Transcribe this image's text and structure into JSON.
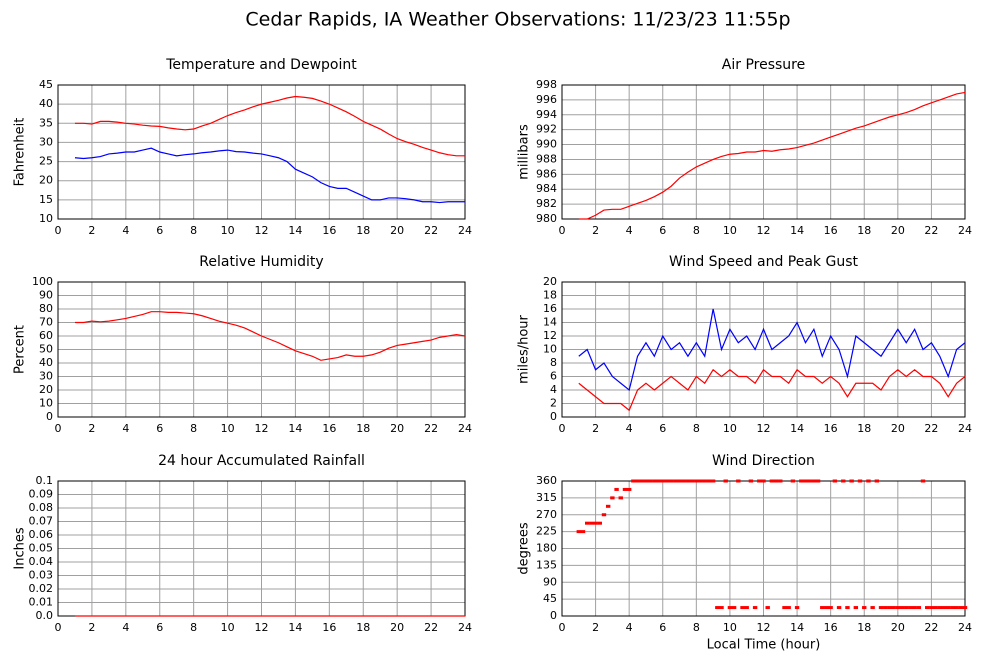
{
  "title": "Cedar Rapids, IA Weather Observations: 11/23/23 11:55p",
  "chart_data": [
    {
      "type": "line",
      "title": "Temperature and Dewpoint",
      "y_label": "Fahrenheit",
      "x": [
        1,
        1.5,
        2,
        2.5,
        3,
        3.5,
        4,
        4.5,
        5,
        5.5,
        6,
        6.5,
        7,
        7.5,
        8,
        8.5,
        9,
        9.5,
        10,
        10.5,
        11,
        11.5,
        12,
        12.5,
        13,
        13.5,
        14,
        14.5,
        15,
        15.5,
        16,
        16.5,
        17,
        17.5,
        18,
        18.5,
        19,
        19.5,
        20,
        20.5,
        21,
        21.5,
        22,
        22.5,
        23,
        23.5,
        24
      ],
      "series": [
        {
          "color": "#ff0000",
          "values": [
            35,
            35,
            34.8,
            35.5,
            35.5,
            35.3,
            35,
            34.8,
            34.5,
            34.3,
            34.2,
            33.8,
            33.5,
            33.3,
            33.5,
            34.3,
            35,
            36,
            37,
            37.8,
            38.5,
            39.3,
            40,
            40.5,
            41,
            41.6,
            42,
            41.8,
            41.5,
            40.8,
            40,
            39,
            38,
            36.8,
            35.5,
            34.5,
            33.5,
            32.2,
            31,
            30.2,
            29.5,
            28.7,
            28,
            27.3,
            26.8,
            26.5,
            26.5
          ]
        },
        {
          "color": "#0000ff",
          "values": [
            26,
            25.8,
            26,
            26.3,
            27,
            27.2,
            27.5,
            27.5,
            28,
            28.5,
            27.5,
            27,
            26.5,
            26.8,
            27,
            27.3,
            27.5,
            27.8,
            28,
            27.6,
            27.5,
            27.2,
            27,
            26.5,
            26,
            25,
            23,
            22,
            21,
            19.5,
            18.5,
            18,
            18,
            17,
            16,
            15,
            15,
            15.5,
            15.5,
            15.3,
            15,
            14.5,
            14.5,
            14.3,
            14.5,
            14.5,
            14.5
          ]
        }
      ],
      "xlim": [
        0,
        24
      ],
      "xticks": [
        0,
        2,
        4,
        6,
        8,
        10,
        12,
        14,
        16,
        18,
        20,
        22,
        24
      ],
      "ylim": [
        10,
        45
      ],
      "yticks": [
        10,
        15,
        20,
        25,
        30,
        35,
        40,
        45
      ],
      "grid": true
    },
    {
      "type": "line",
      "title": "Air Pressure",
      "y_label": "millibars",
      "x": [
        1,
        1.5,
        2,
        2.5,
        3,
        3.5,
        4,
        4.5,
        5,
        5.5,
        6,
        6.5,
        7,
        7.5,
        8,
        8.5,
        9,
        9.5,
        10,
        10.5,
        11,
        11.5,
        12,
        12.5,
        13,
        13.5,
        14,
        14.5,
        15,
        15.5,
        16,
        16.5,
        17,
        17.5,
        18,
        18.5,
        19,
        19.5,
        20,
        20.5,
        21,
        21.5,
        22,
        22.5,
        23,
        23.5,
        24
      ],
      "series": [
        {
          "color": "#ff0000",
          "values": [
            980,
            980,
            980.5,
            981.2,
            981.3,
            981.3,
            981.7,
            982.1,
            982.5,
            983,
            983.6,
            984.4,
            985.5,
            986.3,
            987,
            987.5,
            988,
            988.4,
            988.7,
            988.8,
            989,
            989,
            989.2,
            989.1,
            989.3,
            989.4,
            989.6,
            989.9,
            990.2,
            990.6,
            991,
            991.4,
            991.8,
            992.2,
            992.5,
            992.9,
            993.3,
            993.7,
            994,
            994.3,
            994.7,
            995.2,
            995.6,
            996,
            996.4,
            996.8,
            997
          ]
        }
      ],
      "xlim": [
        0,
        24
      ],
      "xticks": [
        0,
        2,
        4,
        6,
        8,
        10,
        12,
        14,
        16,
        18,
        20,
        22,
        24
      ],
      "ylim": [
        980,
        998
      ],
      "yticks": [
        980,
        982,
        984,
        986,
        988,
        990,
        992,
        994,
        996,
        998
      ],
      "grid": true
    },
    {
      "type": "line",
      "title": "Relative Humidity",
      "y_label": "Percent",
      "x": [
        1,
        1.5,
        2,
        2.5,
        3,
        3.5,
        4,
        4.5,
        5,
        5.5,
        6,
        6.5,
        7,
        7.5,
        8,
        8.5,
        9,
        9.5,
        10,
        10.5,
        11,
        11.5,
        12,
        12.5,
        13,
        13.5,
        14,
        14.5,
        15,
        15.5,
        16,
        16.5,
        17,
        17.5,
        18,
        18.5,
        19,
        19.5,
        20,
        20.5,
        21,
        21.5,
        22,
        22.5,
        23,
        23.5,
        24
      ],
      "series": [
        {
          "color": "#ff0000",
          "values": [
            70,
            70,
            71,
            70.5,
            71,
            72,
            73,
            74.5,
            76,
            78,
            78,
            77.5,
            77.5,
            77,
            76.5,
            75,
            73,
            71,
            69.5,
            68,
            66,
            63,
            60,
            57.5,
            55,
            52,
            49,
            47,
            45,
            42,
            43,
            44,
            46,
            45,
            45,
            46,
            48,
            51,
            53,
            54,
            55,
            56,
            57,
            59,
            60,
            61,
            60
          ]
        }
      ],
      "xlim": [
        0,
        24
      ],
      "xticks": [
        0,
        2,
        4,
        6,
        8,
        10,
        12,
        14,
        16,
        18,
        20,
        22,
        24
      ],
      "ylim": [
        0,
        100
      ],
      "yticks": [
        0,
        10,
        20,
        30,
        40,
        50,
        60,
        70,
        80,
        90,
        100
      ],
      "grid": true
    },
    {
      "type": "line",
      "title": "Wind Speed and Peak Gust",
      "y_label": "miles/hour",
      "x": [
        1,
        1.5,
        2,
        2.5,
        3,
        3.5,
        4,
        4.5,
        5,
        5.5,
        6,
        6.5,
        7,
        7.5,
        8,
        8.5,
        9,
        9.5,
        10,
        10.5,
        11,
        11.5,
        12,
        12.5,
        13,
        13.5,
        14,
        14.5,
        15,
        15.5,
        16,
        16.5,
        17,
        17.5,
        18,
        18.5,
        19,
        19.5,
        20,
        20.5,
        21,
        21.5,
        22,
        22.5,
        23,
        23.5,
        24
      ],
      "series": [
        {
          "color": "#0000ff",
          "values": [
            9,
            10,
            7,
            8,
            6,
            5,
            4,
            9,
            11,
            9,
            12,
            10,
            11,
            9,
            11,
            9,
            16,
            10,
            13,
            11,
            12,
            10,
            13,
            10,
            11,
            12,
            14,
            11,
            13,
            9,
            12,
            10,
            6,
            12,
            11,
            10,
            9,
            11,
            13,
            11,
            13,
            10,
            11,
            9,
            6,
            10,
            11
          ]
        },
        {
          "color": "#ff0000",
          "values": [
            5,
            4,
            3,
            2,
            2,
            2,
            1,
            4,
            5,
            4,
            5,
            6,
            5,
            4,
            6,
            5,
            7,
            6,
            7,
            6,
            6,
            5,
            7,
            6,
            6,
            5,
            7,
            6,
            6,
            5,
            6,
            5,
            3,
            5,
            5,
            5,
            4,
            6,
            7,
            6,
            7,
            6,
            6,
            5,
            3,
            5,
            6
          ]
        }
      ],
      "xlim": [
        0,
        24
      ],
      "xticks": [
        0,
        2,
        4,
        6,
        8,
        10,
        12,
        14,
        16,
        18,
        20,
        22,
        24
      ],
      "ylim": [
        0,
        20
      ],
      "yticks": [
        0,
        2,
        4,
        6,
        8,
        10,
        12,
        14,
        16,
        18,
        20
      ],
      "grid": true
    },
    {
      "type": "line",
      "title": "24 hour Accumulated Rainfall",
      "y_label": "Inches",
      "x": [
        1,
        24
      ],
      "series": [
        {
          "color": "#ff0000",
          "values": [
            0,
            0
          ]
        }
      ],
      "xlim": [
        0,
        24
      ],
      "xticks": [
        0,
        2,
        4,
        6,
        8,
        10,
        12,
        14,
        16,
        18,
        20,
        22,
        24
      ],
      "ylim": [
        0,
        0.1
      ],
      "yticks": [
        {
          "value": 0,
          "label": "0.0"
        },
        0.01,
        0.02,
        0.03,
        0.04,
        0.05,
        0.06,
        0.07,
        0.08,
        0.09,
        0.1
      ],
      "grid": true
    },
    {
      "type": "scatter",
      "title": "Wind Direction",
      "y_label": "degrees",
      "x_label": "Local Time (hour)",
      "x": [
        1,
        1.25,
        1.5,
        1.75,
        2,
        2.25,
        2.5,
        2.75,
        3,
        3.25,
        3.5,
        3.75,
        4,
        4.25,
        4.5,
        4.75,
        5,
        5.25,
        5.5,
        5.75,
        6,
        6.25,
        6.5,
        6.75,
        7,
        7.25,
        7.5,
        7.75,
        8,
        8.25,
        8.5,
        8.75,
        9,
        9.25,
        9.5,
        9.75,
        10,
        10.25,
        10.5,
        10.75,
        11,
        11.25,
        11.5,
        11.75,
        12,
        12.25,
        12.5,
        12.75,
        13,
        13.25,
        13.5,
        13.75,
        14,
        14.25,
        14.5,
        14.75,
        15,
        15.25,
        15.5,
        15.75,
        16,
        16.25,
        16.5,
        16.75,
        17,
        17.25,
        17.5,
        17.75,
        18,
        18.25,
        18.5,
        18.75,
        19,
        19.25,
        19.5,
        19.75,
        20,
        20.25,
        20.5,
        20.75,
        21,
        21.25,
        21.5,
        21.75,
        22,
        22.25,
        22.5,
        22.75,
        23,
        23.25,
        23.5,
        23.75,
        24
      ],
      "series": [
        {
          "color": "#ff0000",
          "values": [
            225,
            225,
            247.5,
            247.5,
            247.5,
            247.5,
            270,
            292.5,
            315,
            337.5,
            315,
            337.5,
            337.5,
            360,
            360,
            360,
            360,
            360,
            360,
            360,
            360,
            360,
            360,
            360,
            360,
            360,
            360,
            360,
            360,
            360,
            360,
            360,
            360,
            22.5,
            22.5,
            360,
            22.5,
            22.5,
            360,
            22.5,
            22.5,
            360,
            22.5,
            360,
            360,
            22.5,
            360,
            360,
            360,
            22.5,
            22.5,
            360,
            22.5,
            360,
            360,
            360,
            360,
            360,
            22.5,
            22.5,
            22.5,
            360,
            22.5,
            360,
            22.5,
            360,
            22.5,
            360,
            22.5,
            360,
            22.5,
            360,
            22.5,
            22.5,
            22.5,
            22.5,
            22.5,
            22.5,
            22.5,
            22.5,
            22.5,
            22.5,
            360,
            22.5,
            22.5,
            22.5,
            22.5,
            22.5,
            22.5,
            22.5,
            22.5,
            22.5,
            22.5
          ]
        }
      ],
      "xlim": [
        0,
        24
      ],
      "xticks": [
        0,
        2,
        4,
        6,
        8,
        10,
        12,
        14,
        16,
        18,
        20,
        22,
        24
      ],
      "ylim": [
        0,
        360
      ],
      "yticks": [
        0,
        45,
        90,
        135,
        180,
        225,
        270,
        315,
        360
      ],
      "grid": true
    }
  ]
}
